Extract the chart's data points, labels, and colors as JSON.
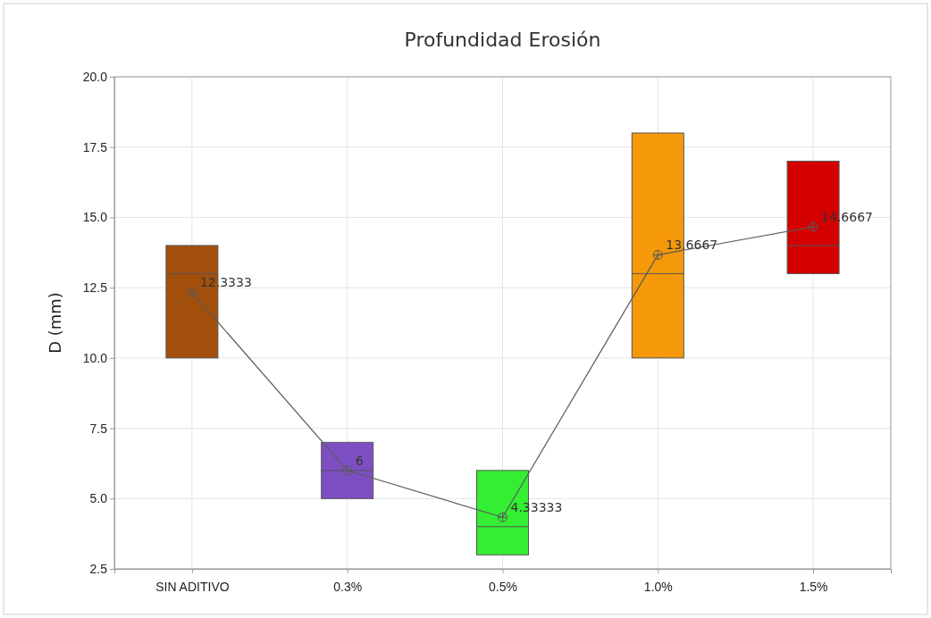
{
  "chart_data": {
    "type": "box",
    "title": "Profundidad Erosión",
    "ylabel": "D (mm)",
    "categories": [
      "SIN ADITIVO",
      "0.3%",
      "0.5%",
      "1.0%",
      "1.5%"
    ],
    "ylim": [
      2.5,
      20
    ],
    "yticks": [
      {
        "value": 2.5,
        "label": "2.5"
      },
      {
        "value": 5,
        "label": "5.0"
      },
      {
        "value": 7.5,
        "label": "7.5"
      },
      {
        "value": 10,
        "label": "10.0"
      },
      {
        "value": 12.5,
        "label": "12.5"
      },
      {
        "value": 15,
        "label": "15.0"
      },
      {
        "value": 17.5,
        "label": "17.5"
      },
      {
        "value": 20,
        "label": "20.0"
      }
    ],
    "grid": true,
    "series": [
      {
        "type": "box",
        "colors": [
          "#a24f0c",
          "#7d4fc2",
          "#33ee33",
          "#f5980a",
          "#d40000"
        ],
        "boxes": [
          {
            "low": 10,
            "q1": 10,
            "median": 13,
            "q3": 14,
            "high": 14
          },
          {
            "low": 5,
            "q1": 5,
            "median": 6,
            "q3": 7,
            "high": 7
          },
          {
            "low": 3,
            "q1": 3,
            "median": 4,
            "q3": 6,
            "high": 6
          },
          {
            "low": 10,
            "q1": 10,
            "median": 13,
            "q3": 18,
            "high": 18
          },
          {
            "low": 13,
            "q1": 13,
            "median": 14,
            "q3": 17,
            "high": 17
          }
        ]
      },
      {
        "type": "line",
        "color": "#5a5a5a",
        "marker": "circle",
        "values": [
          12.3333,
          6,
          4.33333,
          13.6667,
          14.6667
        ],
        "value_labels": [
          "12.3333",
          "6",
          "4.33333",
          "13.6667",
          "14.6667"
        ]
      }
    ]
  }
}
